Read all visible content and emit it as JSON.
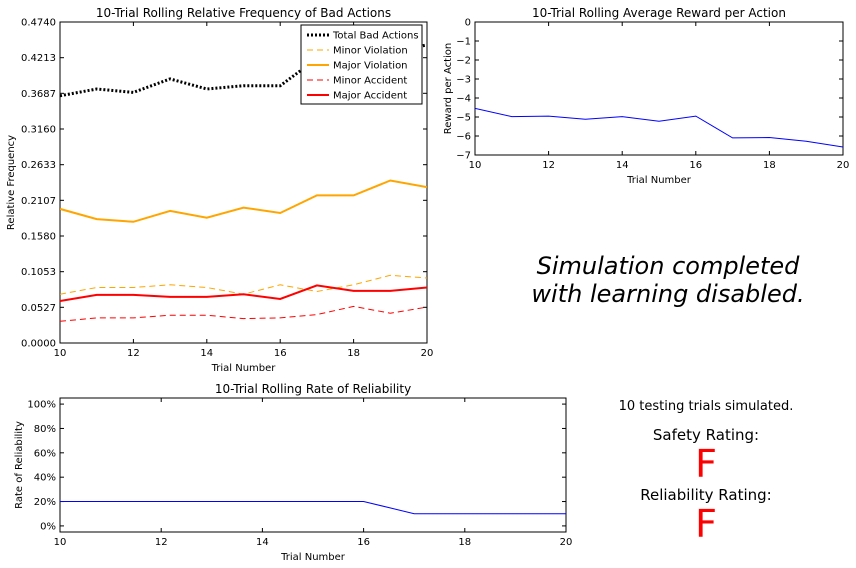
{
  "chart_data": [
    {
      "type": "line",
      "title": "10-Trial Rolling Relative Frequency of Bad Actions",
      "xlabel": "Trial Number",
      "ylabel": "Relative Frequency",
      "xlim": [
        10,
        20
      ],
      "ylim": [
        0,
        0.474
      ],
      "xticks": [
        10,
        12,
        14,
        16,
        18,
        20
      ],
      "yticks": [
        0.0,
        0.0527,
        0.1053,
        0.158,
        0.2107,
        0.2633,
        0.316,
        0.3687,
        0.4213,
        0.474
      ],
      "yticklabels": [
        "0.0000",
        "0.0527",
        "0.1053",
        "0.1580",
        "0.2107",
        "0.2633",
        "0.3160",
        "0.3687",
        "0.4213",
        "0.4740"
      ],
      "legend": "top-right",
      "grid": false,
      "x": [
        10,
        11,
        12,
        13,
        14,
        15,
        16,
        17,
        18,
        19,
        20
      ],
      "series": [
        {
          "name": "Total Bad Actions",
          "color": "#000000",
          "style": "dotted",
          "values": [
            0.365,
            0.375,
            0.37,
            0.39,
            0.375,
            0.38,
            0.38,
            0.42,
            0.41,
            0.43,
            0.44
          ]
        },
        {
          "name": "Minor Violation",
          "color": "#ffa500",
          "style": "dashed",
          "values": [
            0.072,
            0.082,
            0.082,
            0.086,
            0.082,
            0.072,
            0.086,
            0.076,
            0.086,
            0.1,
            0.096
          ]
        },
        {
          "name": "Major Violation",
          "color": "#ffa500",
          "style": "solid",
          "values": [
            0.198,
            0.183,
            0.179,
            0.195,
            0.185,
            0.2,
            0.192,
            0.218,
            0.218,
            0.24,
            0.23
          ]
        },
        {
          "name": "Minor Accident",
          "color": "#ff0000",
          "style": "dashed",
          "values": [
            0.032,
            0.037,
            0.037,
            0.041,
            0.041,
            0.036,
            0.037,
            0.042,
            0.054,
            0.044,
            0.053
          ]
        },
        {
          "name": "Major Accident",
          "color": "#ff0000",
          "style": "solid",
          "values": [
            0.062,
            0.071,
            0.071,
            0.068,
            0.068,
            0.072,
            0.065,
            0.085,
            0.077,
            0.077,
            0.082
          ]
        }
      ]
    },
    {
      "type": "line",
      "title": "10-Trial Rolling Average Reward per Action",
      "xlabel": "Trial Number",
      "ylabel": "Reward per Action",
      "xlim": [
        10,
        20
      ],
      "ylim": [
        -7,
        0
      ],
      "xticks": [
        10,
        12,
        14,
        16,
        18,
        20
      ],
      "yticks": [
        0,
        -1,
        -2,
        -3,
        -4,
        -5,
        -6,
        -7
      ],
      "yticklabels": [
        "0",
        "−1",
        "−2",
        "−3",
        "−4",
        "−5",
        "−6",
        "−7"
      ],
      "grid": false,
      "x": [
        10,
        11,
        12,
        13,
        14,
        15,
        16,
        17,
        18,
        19,
        20
      ],
      "series": [
        {
          "color": "#0000ff",
          "style": "solid",
          "values": [
            -4.55,
            -4.98,
            -4.95,
            -5.12,
            -4.98,
            -5.22,
            -4.95,
            -6.1,
            -6.08,
            -6.28,
            -6.58
          ]
        }
      ]
    },
    {
      "type": "line",
      "title": "10-Trial Rolling Rate of Reliability",
      "xlabel": "Trial Number",
      "ylabel": "Rate of Reliability",
      "xlim": [
        10,
        20
      ],
      "ylim": [
        -5,
        105
      ],
      "xticks": [
        10,
        12,
        14,
        16,
        18,
        20
      ],
      "yticks": [
        0,
        20,
        40,
        60,
        80,
        100
      ],
      "yticklabels": [
        "0%",
        "20%",
        "40%",
        "60%",
        "80%",
        "100%"
      ],
      "grid": false,
      "x": [
        10,
        11,
        12,
        13,
        14,
        15,
        16,
        17,
        18,
        19,
        20
      ],
      "series": [
        {
          "color": "#0000ff",
          "style": "solid",
          "values": [
            20,
            20,
            20,
            20,
            20,
            20,
            20,
            10,
            10,
            10,
            10
          ]
        }
      ]
    }
  ],
  "status": {
    "line1": "Simulation completed",
    "line2": "with learning disabled."
  },
  "ratings": {
    "trials_text": "10 testing trials simulated.",
    "safety_label": "Safety Rating:",
    "safety_grade": "F",
    "safety_color": "#ff0000",
    "reliability_label": "Reliability Rating:",
    "reliability_grade": "F",
    "reliability_color": "#ff0000"
  }
}
